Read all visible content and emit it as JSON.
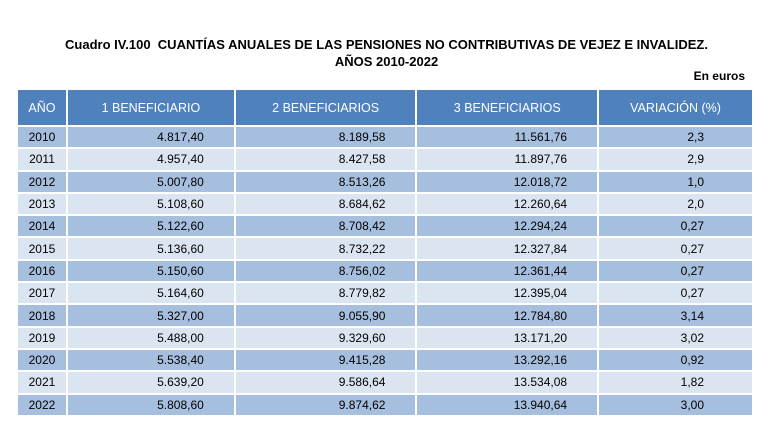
{
  "header": {
    "label": "Cuadro IV.100",
    "title": "CUANTÍAS ANUALES DE LAS PENSIONES NO CONTRIBUTIVAS DE VEJEZ E INVALIDEZ.",
    "subtitle": "AÑOS 2010-2022",
    "unit": "En euros"
  },
  "table": {
    "columns": [
      "AÑO",
      "1 BENEFICIARIO",
      "2 BENEFICIARIOS",
      "3 BENEFICIARIOS",
      "VARIACIÓN (%)"
    ],
    "rows": [
      [
        "2010",
        "4.817,40",
        "8.189,58",
        "11.561,76",
        "2,3"
      ],
      [
        "2011",
        "4.957,40",
        "8.427,58",
        "11.897,76",
        "2,9"
      ],
      [
        "2012",
        "5.007,80",
        "8.513,26",
        "12.018,72",
        "1,0"
      ],
      [
        "2013",
        "5.108,60",
        "8.684,62",
        "12.260,64",
        "2,0"
      ],
      [
        "2014",
        "5.122,60",
        "8.708,42",
        "12.294,24",
        "0,27"
      ],
      [
        "2015",
        "5.136,60",
        "8.732,22",
        "12.327,84",
        "0,27"
      ],
      [
        "2016",
        "5.150,60",
        "8.756,02",
        "12.361,44",
        "0,27"
      ],
      [
        "2017",
        "5.164,60",
        "8.779,82",
        "12.395,04",
        "0,27"
      ],
      [
        "2018",
        "5.327,00",
        "9.055,90",
        "12.784,80",
        "3,14"
      ],
      [
        "2019",
        "5.488,00",
        "9.329,60",
        "13.171,20",
        "3,02"
      ],
      [
        "2020",
        "5.538,40",
        "9.415,28",
        "13.292,16",
        "0,92"
      ],
      [
        "2021",
        "5.639,20",
        "9.586,64",
        "13.534,08",
        "1,82"
      ],
      [
        "2022",
        "5.808,60",
        "9.874,62",
        "13.940,64",
        "3,00"
      ]
    ]
  }
}
